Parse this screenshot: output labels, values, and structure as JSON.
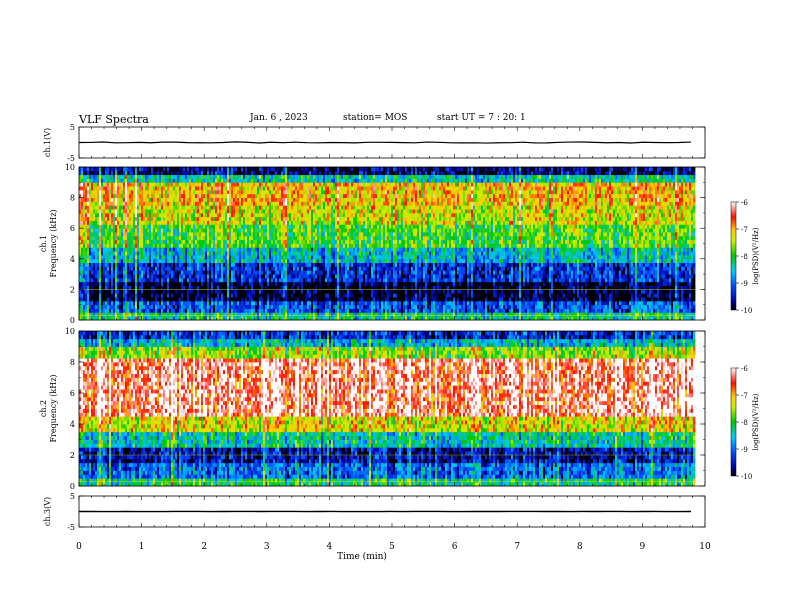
{
  "header": {
    "title": "VLF Spectra",
    "date": "Jan. 6 , 2023",
    "station": "station= MOS",
    "start_ut": "start UT =  7 : 20: 1"
  },
  "chart_data": {
    "type": "heatmap",
    "x": {
      "label": "Time (min)",
      "range": [
        0,
        10
      ],
      "ticks": [
        "0",
        "1",
        "2",
        "3",
        "4",
        "5",
        "6",
        "7",
        "8",
        "9",
        "10"
      ],
      "data_end": 9.84
    },
    "panels": [
      {
        "id": "ch1-waveform",
        "type": "line",
        "ylabel": "ch.1(V)",
        "ylim": [
          -5,
          5
        ],
        "ytick_labels": [
          "5",
          "-5"
        ],
        "level": 0
      },
      {
        "id": "ch1-spectrogram",
        "type": "heatmap",
        "ylabel": "ch.1 Frequency (kHz)",
        "ylim": [
          0,
          10
        ],
        "ytick_labels": [
          "0",
          "2",
          "4",
          "6",
          "8",
          "10"
        ],
        "colorbar": {
          "label": "log(PSD)(V²/Hz)",
          "range": [
            -10,
            -6
          ],
          "tick_labels": [
            "-6",
            "-7",
            "-8",
            "-9",
            "-10"
          ]
        },
        "bands": [
          {
            "freq_khz": [
              0.0,
              0.4
            ],
            "log_psd": -8.3
          },
          {
            "freq_khz": [
              0.4,
              1.2
            ],
            "log_psd": -9.2
          },
          {
            "freq_khz": [
              1.2,
              2.4
            ],
            "log_psd": -10.0
          },
          {
            "freq_khz": [
              2.4,
              3.8
            ],
            "log_psd": -9.4
          },
          {
            "freq_khz": [
              3.8,
              4.8
            ],
            "log_psd": -8.6
          },
          {
            "freq_khz": [
              4.8,
              6.2
            ],
            "log_psd": -7.9
          },
          {
            "freq_khz": [
              6.2,
              7.6
            ],
            "log_psd": -7.4
          },
          {
            "freq_khz": [
              7.6,
              8.9
            ],
            "log_psd": -7.1
          },
          {
            "freq_khz": [
              8.9,
              9.4
            ],
            "log_psd": -8.4
          },
          {
            "freq_khz": [
              9.4,
              10.0
            ],
            "log_psd": -9.8
          }
        ]
      },
      {
        "id": "ch2-spectrogram",
        "type": "heatmap",
        "ylabel": "ch.2 Frequency (kHz)",
        "ylim": [
          0,
          10
        ],
        "ytick_labels": [
          "0",
          "2",
          "4",
          "6",
          "8",
          "10"
        ],
        "colorbar": {
          "label": "log(PSD)(V²/Hz)",
          "range": [
            -10,
            -6
          ],
          "tick_labels": [
            "-6",
            "-7",
            "-8",
            "-9",
            "-10"
          ]
        },
        "bands": [
          {
            "freq_khz": [
              0.0,
              0.5
            ],
            "log_psd": -8.2
          },
          {
            "freq_khz": [
              0.5,
              1.5
            ],
            "log_psd": -9.0
          },
          {
            "freq_khz": [
              1.5,
              2.4
            ],
            "log_psd": -9.6
          },
          {
            "freq_khz": [
              2.4,
              3.5
            ],
            "log_psd": -8.4
          },
          {
            "freq_khz": [
              3.5,
              4.5
            ],
            "log_psd": -7.3
          },
          {
            "freq_khz": [
              4.5,
              8.2
            ],
            "log_psd": -6.3
          },
          {
            "freq_khz": [
              8.2,
              9.0
            ],
            "log_psd": -7.6
          },
          {
            "freq_khz": [
              9.0,
              9.6
            ],
            "log_psd": -8.6
          },
          {
            "freq_khz": [
              9.6,
              10.0
            ],
            "log_psd": -9.4
          }
        ]
      },
      {
        "id": "ch3-waveform",
        "type": "line",
        "ylabel": "ch.3(V)",
        "ylim": [
          -5,
          5
        ],
        "ytick_labels": [
          "5",
          "-5"
        ],
        "level": 0
      }
    ]
  }
}
